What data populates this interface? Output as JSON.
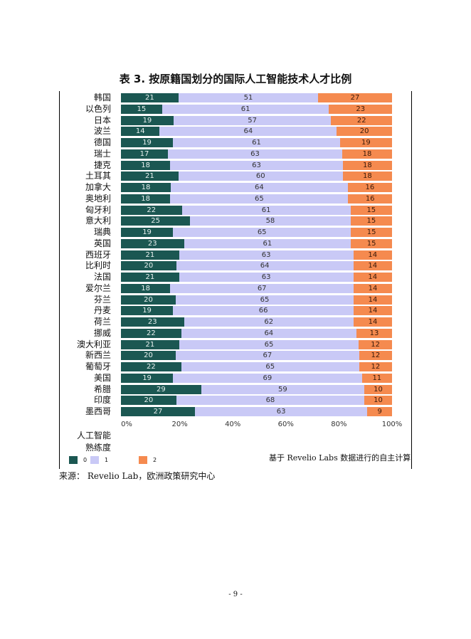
{
  "title": "表 3. 按原籍国划分的国际人工智能技术人才比例",
  "chart_data": {
    "type": "bar",
    "orientation": "horizontal",
    "stacked": true,
    "percent": true,
    "categories": [
      "韩国",
      "以色列",
      "日本",
      "波兰",
      "德国",
      "瑞士",
      "捷克",
      "土耳其",
      "加拿大",
      "奥地利",
      "匈牙利",
      "意大利",
      "瑞典",
      "英国",
      "西班牙",
      "比利时",
      "法国",
      "爱尔兰",
      "芬兰",
      "丹麦",
      "荷兰",
      "挪威",
      "澳大利亚",
      "新西兰",
      "葡萄牙",
      "美国",
      "希腊",
      "印度",
      "墨西哥"
    ],
    "series": [
      {
        "name": "0",
        "color": "#1b5752",
        "values": [
          21,
          15,
          19,
          14,
          19,
          17,
          18,
          21,
          18,
          18,
          22,
          25,
          19,
          23,
          21,
          20,
          21,
          18,
          20,
          19,
          23,
          22,
          21,
          20,
          22,
          19,
          29,
          20,
          27
        ]
      },
      {
        "name": "1",
        "color": "#c9c9f6",
        "values": [
          51,
          61,
          57,
          64,
          61,
          63,
          63,
          60,
          64,
          65,
          61,
          58,
          65,
          61,
          63,
          64,
          63,
          67,
          65,
          66,
          62,
          64,
          65,
          67,
          65,
          69,
          59,
          68,
          63
        ]
      },
      {
        "name": "2",
        "color": "#f58a4f",
        "values": [
          27,
          23,
          22,
          20,
          19,
          18,
          18,
          18,
          16,
          16,
          15,
          15,
          15,
          15,
          14,
          14,
          14,
          14,
          14,
          14,
          14,
          13,
          12,
          12,
          12,
          11,
          10,
          10,
          9
        ]
      }
    ],
    "xticks": [
      "0%",
      "20%",
      "40%",
      "60%",
      "80%",
      "100%"
    ],
    "xlim": [
      0,
      100
    ],
    "legend_title": "人工智能熟练度",
    "legend_title_lines": [
      "人工智能",
      "熟练度"
    ],
    "legend_position": "bottom-left",
    "grid": false
  },
  "note": "基于 Revelio Labs 数据进行的自主计算",
  "source": "来源：  Revelio Lab，欧洲政策研究中心",
  "page_number": "- 9 -"
}
